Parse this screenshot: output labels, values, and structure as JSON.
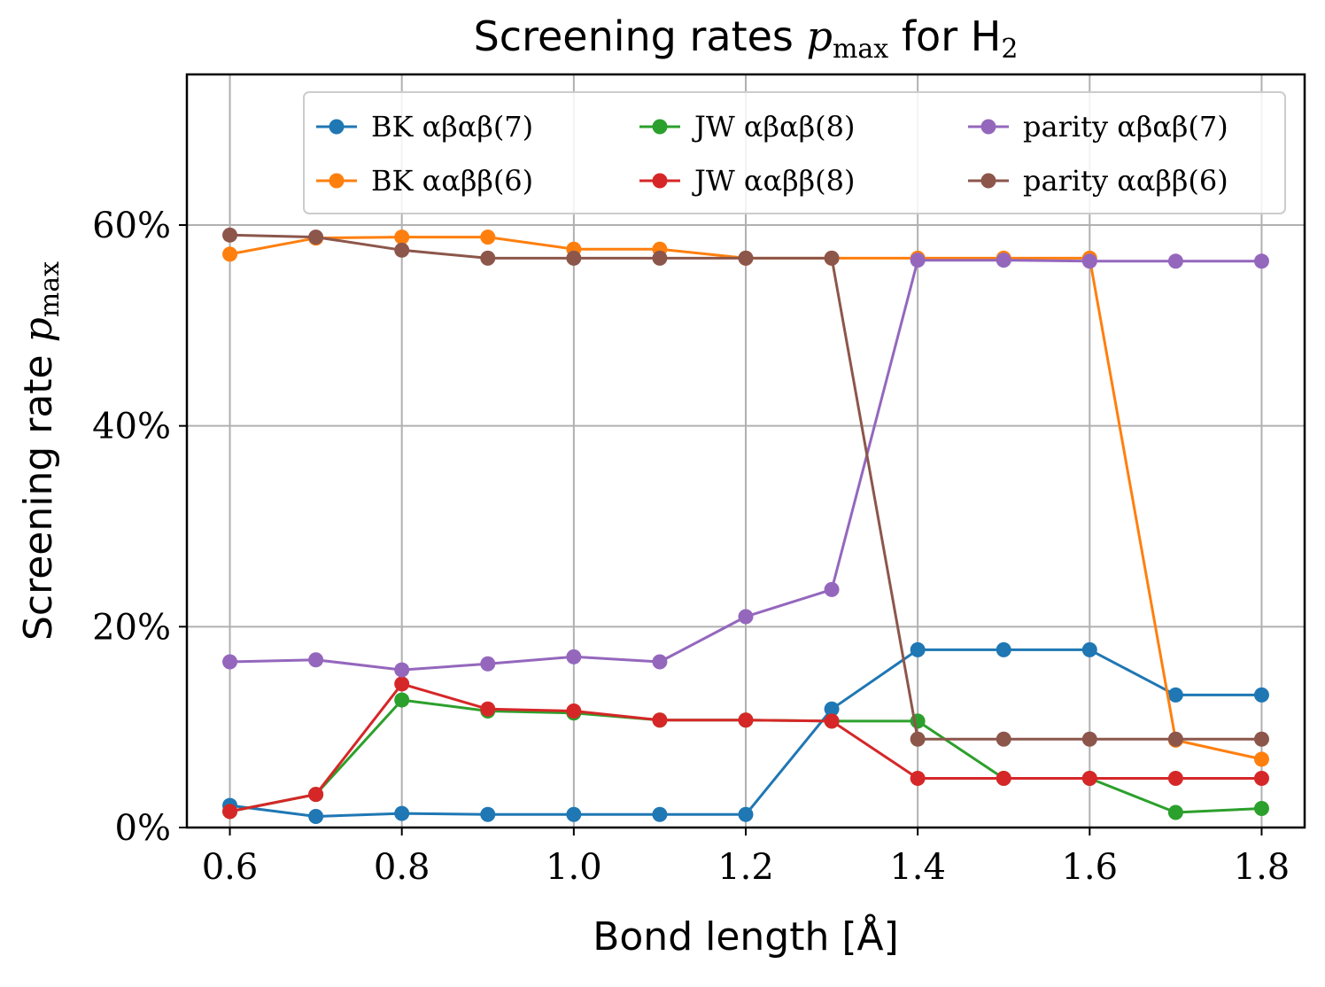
{
  "chart_data": {
    "type": "line",
    "title": "Screening rates p_max for H₂",
    "title_parts": {
      "prefix": "Screening rates ",
      "var": "p",
      "sub": "max",
      "suffix_text": " for H",
      "suffix_sub": "2"
    },
    "xlabel": "Bond length [Å]",
    "ylabel": "Screening rate p_max",
    "ylabel_parts": {
      "prefix": "Screening rate ",
      "var": "p",
      "sub": "max"
    },
    "xlim": [
      0.55,
      1.85
    ],
    "ylim": [
      0,
      75
    ],
    "x_ticks": [
      0.6,
      0.8,
      1.0,
      1.2,
      1.4,
      1.6,
      1.8
    ],
    "x_tick_labels": [
      "0.6",
      "0.8",
      "1.0",
      "1.2",
      "1.4",
      "1.6",
      "1.8"
    ],
    "y_ticks": [
      0,
      20,
      40,
      60
    ],
    "y_tick_labels": [
      "0%",
      "20%",
      "40%",
      "60%"
    ],
    "grid": true,
    "legend_placement": "top-right",
    "legend_columns": 3,
    "x": [
      0.6,
      0.7,
      0.8,
      0.9,
      1.0,
      1.1,
      1.2,
      1.3,
      1.4,
      1.5,
      1.6,
      1.7,
      1.8
    ],
    "series": [
      {
        "name": "BK αβαβ(7)",
        "color": "#1f77b4",
        "values": [
          2.2,
          1.1,
          1.4,
          1.3,
          1.3,
          1.3,
          1.3,
          11.8,
          17.7,
          17.7,
          17.7,
          13.2,
          13.2
        ]
      },
      {
        "name": "BK ααββ(6)",
        "color": "#ff7f0e",
        "values": [
          57.1,
          58.7,
          58.8,
          58.8,
          57.6,
          57.6,
          56.7,
          56.7,
          56.7,
          56.7,
          56.7,
          8.7,
          6.8
        ]
      },
      {
        "name": "JW αβαβ(8)",
        "color": "#2ca02c",
        "values": [
          1.6,
          3.3,
          12.7,
          11.6,
          11.4,
          10.7,
          10.7,
          10.6,
          10.6,
          4.9,
          4.9,
          1.5,
          1.9
        ]
      },
      {
        "name": "JW ααββ(8)",
        "color": "#d62728",
        "values": [
          1.6,
          3.3,
          14.3,
          11.8,
          11.6,
          10.7,
          10.7,
          10.6,
          4.9,
          4.9,
          4.9,
          4.9,
          4.9
        ]
      },
      {
        "name": "parity αβαβ(7)",
        "color": "#9467bd",
        "values": [
          16.5,
          16.7,
          15.7,
          16.3,
          17.0,
          16.5,
          21.0,
          23.7,
          56.5,
          56.5,
          56.4,
          56.4,
          56.4
        ]
      },
      {
        "name": "parity ααββ(6)",
        "color": "#8c564b",
        "values": [
          59.0,
          58.8,
          57.5,
          56.7,
          56.7,
          56.7,
          56.7,
          56.7,
          8.8,
          8.8,
          8.8,
          8.8,
          8.8
        ]
      }
    ],
    "legend_order": [
      0,
      2,
      4,
      1,
      3,
      5
    ]
  }
}
